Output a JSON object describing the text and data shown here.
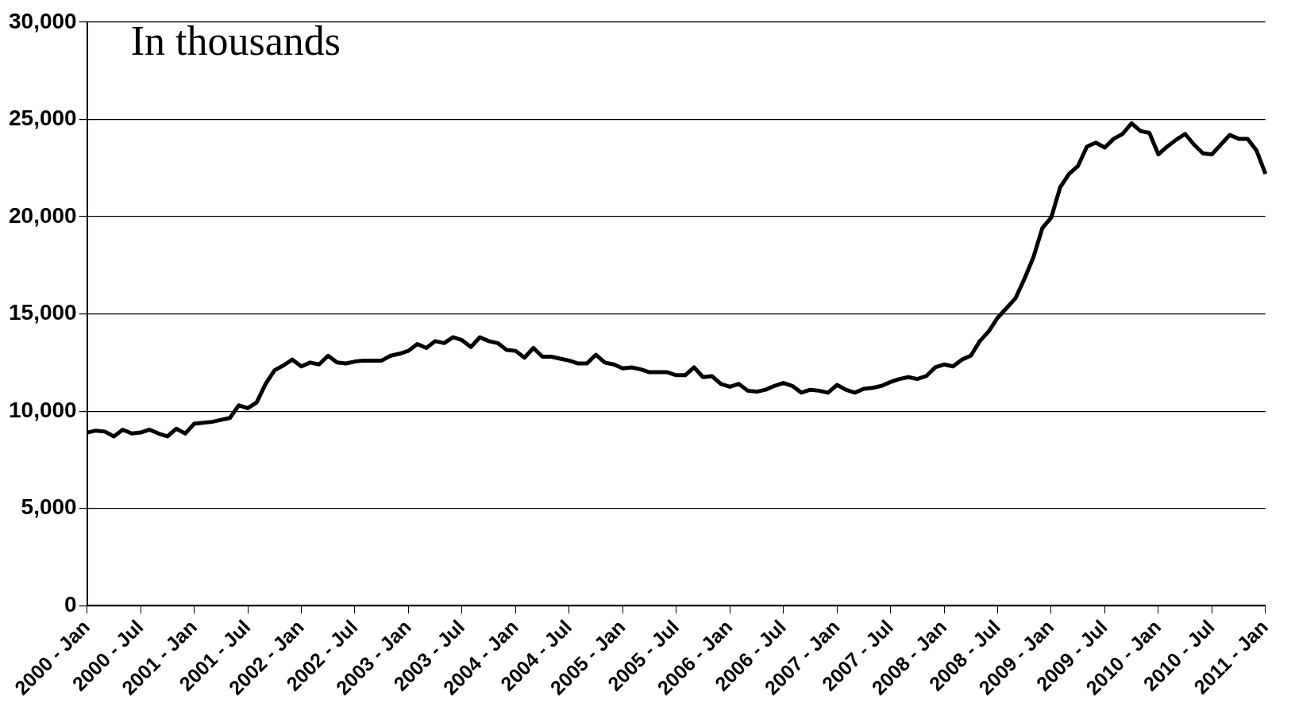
{
  "chart_data": {
    "type": "line",
    "annotations": [
      "In thousands"
    ],
    "categories": [
      "2000 - Jan",
      null,
      null,
      null,
      null,
      null,
      "2000 - Jul",
      null,
      null,
      null,
      null,
      null,
      "2001 - Jan",
      null,
      null,
      null,
      null,
      null,
      "2001 - Jul",
      null,
      null,
      null,
      null,
      null,
      "2002 - Jan",
      null,
      null,
      null,
      null,
      null,
      "2002 - Jul",
      null,
      null,
      null,
      null,
      null,
      "2003 - Jan",
      null,
      null,
      null,
      null,
      null,
      "2003 - Jul",
      null,
      null,
      null,
      null,
      null,
      "2004 - Jan",
      null,
      null,
      null,
      null,
      null,
      "2004 - Jul",
      null,
      null,
      null,
      null,
      null,
      "2005 - Jan",
      null,
      null,
      null,
      null,
      null,
      "2005 - Jul",
      null,
      null,
      null,
      null,
      null,
      "2006 - Jan",
      null,
      null,
      null,
      null,
      null,
      "2006 - Jul",
      null,
      null,
      null,
      null,
      null,
      "2007 - Jan",
      null,
      null,
      null,
      null,
      null,
      "2007 - Jul",
      null,
      null,
      null,
      null,
      null,
      "2008 - Jan",
      null,
      null,
      null,
      null,
      null,
      "2008 - Jul",
      null,
      null,
      null,
      null,
      null,
      "2009 - Jan",
      null,
      null,
      null,
      null,
      null,
      "2009 - Jul",
      null,
      null,
      null,
      null,
      null,
      "2010 - Jan",
      null,
      null,
      null,
      null,
      null,
      "2010 - Jul",
      null,
      null,
      null,
      null,
      null,
      "2011 - Jan"
    ],
    "series": [
      {
        "color": "#000000",
        "values": [
          8900,
          9000,
          8950,
          8700,
          9050,
          8850,
          8900,
          9050,
          8850,
          8700,
          9100,
          8850,
          9350,
          9400,
          9450,
          9550,
          9650,
          10300,
          10150,
          10450,
          11400,
          12100,
          12350,
          12650,
          12300,
          12500,
          12400,
          12850,
          12500,
          12450,
          12550,
          12600,
          12600,
          12600,
          12850,
          12950,
          13100,
          13450,
          13250,
          13600,
          13500,
          13800,
          13650,
          13300,
          13800,
          13600,
          13500,
          13150,
          13100,
          12750,
          13250,
          12800,
          12800,
          12700,
          12600,
          12450,
          12450,
          12900,
          12500,
          12400,
          12200,
          12250,
          12150,
          12000,
          12000,
          12000,
          11850,
          11850,
          12250,
          11750,
          11800,
          11400,
          11250,
          11400,
          11050,
          11000,
          11100,
          11300,
          11450,
          11300,
          10950,
          11100,
          11050,
          10950,
          11350,
          11100,
          10950,
          11150,
          11200,
          11300,
          11500,
          11650,
          11750,
          11650,
          11800,
          12250,
          12400,
          12300,
          12650,
          12850,
          13600,
          14100,
          14800,
          15300,
          15800,
          16800,
          17900,
          19400,
          19950,
          21500,
          22200,
          22600,
          23600,
          23800,
          23550,
          24000,
          24250,
          24800,
          24400,
          24300,
          23200,
          23600,
          23950,
          24250,
          23700,
          23250,
          23200,
          23700,
          24200,
          24000,
          24000,
          23400,
          22200
        ]
      }
    ],
    "ylim": [
      0,
      30000
    ],
    "yticks": [
      0,
      {
        "value": 5000,
        "label": "5,000"
      },
      {
        "value": 10000,
        "label": "10,000"
      },
      {
        "value": 15000,
        "label": "15,000"
      },
      {
        "value": 20000,
        "label": "20,000"
      },
      {
        "value": 25000,
        "label": "25,000"
      },
      {
        "value": 30000,
        "label": "30,000"
      }
    ],
    "grid": "y",
    "legend": false,
    "marker": "none",
    "line_style": "solid"
  }
}
